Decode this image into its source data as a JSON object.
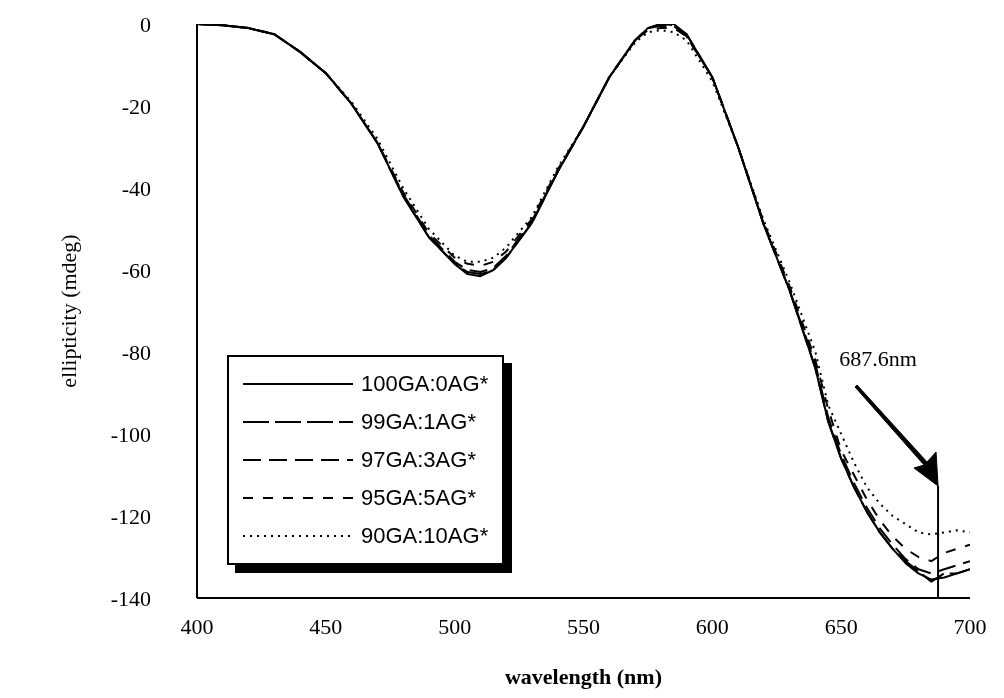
{
  "chart_data": {
    "type": "line",
    "xlabel": "wavelength (nm)",
    "ylabel": "ellipticity (mdeg)",
    "x": [
      400,
      410,
      420,
      430,
      440,
      450,
      460,
      470,
      480,
      490,
      500,
      505,
      510,
      515,
      520,
      530,
      540,
      550,
      560,
      570,
      575,
      580,
      585,
      590,
      600,
      610,
      620,
      630,
      640,
      645,
      650,
      655,
      660,
      665,
      670,
      675,
      680,
      685,
      690,
      695,
      700
    ],
    "series": [
      {
        "name": "100GA:0AG*",
        "color": "#000000",
        "line_style": "solid",
        "values": [
          0,
          -0.3,
          -1,
          -2.5,
          -6.8,
          -12,
          -19.5,
          -29,
          -42,
          -52,
          -58.5,
          -61,
          -61.5,
          -60,
          -57,
          -48.5,
          -36,
          -25,
          -13,
          -4,
          -1,
          0,
          0,
          -2.5,
          -13,
          -30,
          -49,
          -65,
          -84,
          -97,
          -106,
          -113,
          -119,
          -124,
          -128,
          -131.5,
          -134,
          -135.5,
          -135,
          -134,
          -133
        ]
      },
      {
        "name": "99GA:1AG*",
        "color": "#000000",
        "line_style": "dashed",
        "values": [
          0,
          -0.3,
          -1,
          -2.5,
          -6.8,
          -12,
          -19.5,
          -29,
          -42,
          -52,
          -58.5,
          -60.5,
          -61,
          -60,
          -57,
          -48.5,
          -36,
          -25,
          -13,
          -4,
          -1,
          0,
          -0.3,
          -2.5,
          -13,
          -30,
          -49,
          -65,
          -84,
          -97,
          -106,
          -113,
          -119,
          -124,
          -128,
          -131,
          -133.5,
          -136,
          -134,
          -134,
          -133
        ]
      },
      {
        "name": "97GA:3AG*",
        "color": "#000000",
        "line_style": "dashed",
        "values": [
          0,
          -0.3,
          -1,
          -2.5,
          -6.8,
          -12,
          -19.5,
          -29,
          -41.5,
          -51.5,
          -58,
          -60,
          -60.5,
          -59.5,
          -56.5,
          -48,
          -36,
          -25,
          -13,
          -4,
          -1,
          -0.5,
          -0.5,
          -3,
          -13,
          -30,
          -49,
          -65,
          -83,
          -96,
          -105,
          -112,
          -118,
          -123,
          -127,
          -130.5,
          -133,
          -134,
          -133,
          -132,
          -131
        ]
      },
      {
        "name": "95GA:5AG*",
        "color": "#000000",
        "line_style": "dashed",
        "values": [
          0,
          -0.3,
          -1,
          -2.5,
          -6.8,
          -12,
          -19.5,
          -29,
          -41,
          -51,
          -57,
          -58.5,
          -59,
          -58,
          -55.5,
          -47.5,
          -35.5,
          -25,
          -13,
          -4,
          -1.5,
          -1,
          -1,
          -3,
          -13,
          -30,
          -48.5,
          -64,
          -82,
          -94,
          -104,
          -110,
          -116,
          -121,
          -125,
          -128,
          -130,
          -131,
          -129,
          -128,
          -127
        ]
      },
      {
        "name": "90GA:10AG*",
        "color": "#000000",
        "line_style": "dotted",
        "values": [
          0,
          -0.3,
          -1,
          -2.5,
          -6.8,
          -12,
          -19,
          -28,
          -40,
          -50,
          -56.5,
          -58,
          -58,
          -57,
          -54.5,
          -47,
          -35,
          -25,
          -13,
          -4.5,
          -2,
          -1.5,
          -2,
          -4,
          -14,
          -30,
          -48,
          -63,
          -80,
          -93,
          -100,
          -107,
          -113,
          -117,
          -120,
          -122,
          -124,
          -124.5,
          -124,
          -123.5,
          -124
        ]
      }
    ],
    "xlim": [
      400,
      700
    ],
    "xticks": [
      400,
      450,
      500,
      550,
      600,
      650,
      700
    ],
    "ylim": [
      -140,
      0
    ],
    "yticks": [
      -140,
      -120,
      -100,
      -80,
      -60,
      -40,
      -20,
      0
    ],
    "ref_lines": [
      {
        "axis": "x",
        "value": 687.6,
        "color": "#000000"
      }
    ],
    "annotations": [
      "687.6nm"
    ],
    "legend": "bottom left",
    "grid": false,
    "marker": "none"
  }
}
